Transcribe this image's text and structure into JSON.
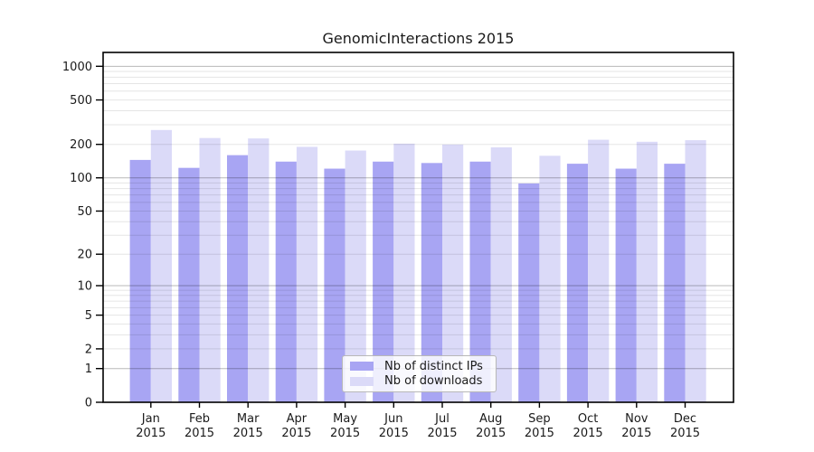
{
  "figure": {
    "background": "#ffffff"
  },
  "chart_data": {
    "type": "bar",
    "title": "GenomicInteractions 2015",
    "scale": "log1p",
    "categories": [
      "Jan",
      "Feb",
      "Mar",
      "Apr",
      "May",
      "Jun",
      "Jul",
      "Aug",
      "Sep",
      "Oct",
      "Nov",
      "Dec"
    ],
    "year": "2015",
    "series": [
      {
        "name": "Nb of distinct IPs",
        "color": "#a8a5f3",
        "values": [
          145,
          123,
          160,
          140,
          121,
          140,
          136,
          140,
          89,
          134,
          121,
          134
        ]
      },
      {
        "name": "Nb of downloads",
        "color": "#dbdaf8",
        "values": [
          269,
          228,
          226,
          190,
          176,
          203,
          199,
          188,
          158,
          220,
          211,
          218
        ]
      }
    ],
    "y_ticks": [
      0,
      1,
      2,
      5,
      10,
      20,
      50,
      100,
      200,
      500,
      1000
    ],
    "y_major_gridlines": [
      1,
      10,
      100,
      1000
    ],
    "y_minor_gridlines": [
      2,
      3,
      4,
      5,
      6,
      7,
      8,
      9,
      20,
      30,
      40,
      50,
      60,
      70,
      80,
      90,
      200,
      300,
      400,
      500,
      600,
      700,
      800,
      900
    ],
    "ylim": [
      0,
      1330
    ],
    "grid": true,
    "legend_position": "bottom-center",
    "xlabel": "",
    "ylabel": ""
  },
  "colors": {
    "axis": "#000000",
    "tick_text": "#1a1a1a",
    "major_grid": "rgba(0,0,0,0.28)",
    "minor_grid": "rgba(0,0,0,0.10)",
    "legend_border": "#b8b8b8"
  }
}
